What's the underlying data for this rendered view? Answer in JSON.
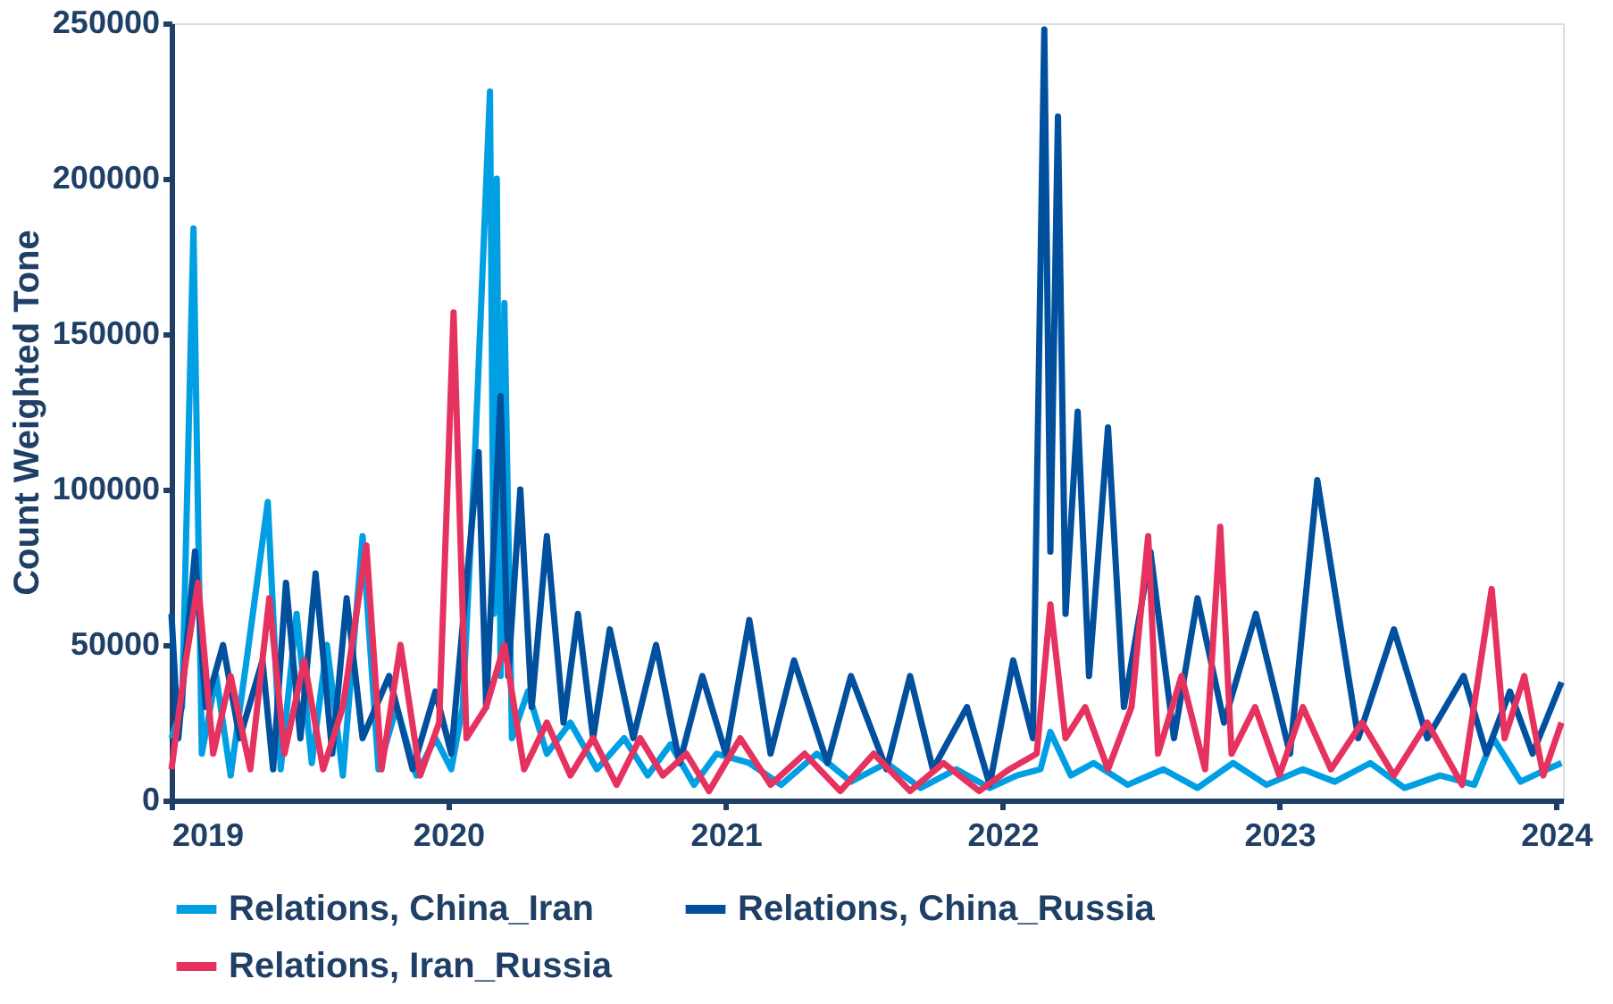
{
  "chart_data": {
    "type": "line",
    "ylabel": "Count Weighted Tone",
    "xlim": [
      "2019-01-01",
      "2024-01-10"
    ],
    "xticks": [
      "2019",
      "2020",
      "2021",
      "2022",
      "2023",
      "2024"
    ],
    "ylim": [
      0,
      250000
    ],
    "yticks": [
      0,
      50000,
      100000,
      150000,
      200000,
      250000
    ],
    "grid": false,
    "legend": "bottom",
    "line_style": "solid",
    "series": [
      {
        "name": "Relations, China_Iran",
        "color": "#009fe3",
        "x": [
          "2019-01-01",
          "2019-01-15",
          "2019-01-30",
          "2019-02-10",
          "2019-03-01",
          "2019-03-20",
          "2019-04-10",
          "2019-05-08",
          "2019-05-25",
          "2019-06-15",
          "2019-07-05",
          "2019-07-25",
          "2019-08-15",
          "2019-09-10",
          "2019-10-01",
          "2019-10-25",
          "2019-11-20",
          "2019-12-15",
          "2020-01-05",
          "2020-01-20",
          "2020-02-05",
          "2020-02-25",
          "2020-03-01",
          "2020-03-05",
          "2020-03-10",
          "2020-03-15",
          "2020-03-25",
          "2020-04-15",
          "2020-05-10",
          "2020-06-10",
          "2020-07-15",
          "2020-08-20",
          "2020-09-20",
          "2020-10-20",
          "2020-11-20",
          "2020-12-20",
          "2021-02-01",
          "2021-03-15",
          "2021-05-01",
          "2021-06-15",
          "2021-08-01",
          "2021-09-15",
          "2021-11-01",
          "2021-12-15",
          "2022-01-20",
          "2022-02-20",
          "2022-03-05",
          "2022-04-01",
          "2022-05-01",
          "2022-06-15",
          "2022-08-01",
          "2022-09-15",
          "2022-11-01",
          "2022-12-15",
          "2023-02-01",
          "2023-03-15",
          "2023-05-01",
          "2023-06-15",
          "2023-08-01",
          "2023-09-15",
          "2023-10-10",
          "2023-11-15",
          "2023-12-20",
          "2024-01-08"
        ],
        "values": [
          20000,
          30000,
          184000,
          15000,
          40000,
          8000,
          45000,
          96000,
          10000,
          60000,
          12000,
          50000,
          8000,
          85000,
          10000,
          30000,
          8000,
          20000,
          10000,
          30000,
          110000,
          228000,
          60000,
          200000,
          40000,
          160000,
          20000,
          35000,
          15000,
          25000,
          10000,
          20000,
          8000,
          18000,
          5000,
          15000,
          12000,
          5000,
          15000,
          6000,
          12000,
          4000,
          10000,
          4000,
          8000,
          10000,
          22000,
          8000,
          12000,
          5000,
          10000,
          4000,
          12000,
          5000,
          10000,
          6000,
          12000,
          4000,
          8000,
          5000,
          20000,
          6000,
          10000,
          12000
        ]
      },
      {
        "name": "Relations, China_Russia",
        "color": "#00509e",
        "x": [
          "2019-01-01",
          "2019-01-10",
          "2019-02-01",
          "2019-02-15",
          "2019-03-10",
          "2019-04-01",
          "2019-05-01",
          "2019-05-15",
          "2019-06-01",
          "2019-06-20",
          "2019-07-10",
          "2019-08-01",
          "2019-08-20",
          "2019-09-10",
          "2019-10-15",
          "2019-11-15",
          "2019-12-15",
          "2020-01-05",
          "2020-01-25",
          "2020-02-10",
          "2020-02-20",
          "2020-03-10",
          "2020-03-20",
          "2020-04-05",
          "2020-04-20",
          "2020-05-10",
          "2020-06-01",
          "2020-06-20",
          "2020-07-10",
          "2020-08-01",
          "2020-09-01",
          "2020-10-01",
          "2020-11-01",
          "2020-12-01",
          "2021-01-01",
          "2021-02-01",
          "2021-03-01",
          "2021-04-01",
          "2021-05-15",
          "2021-06-15",
          "2021-08-01",
          "2021-09-01",
          "2021-10-01",
          "2021-11-15",
          "2021-12-15",
          "2022-01-15",
          "2022-02-10",
          "2022-02-25",
          "2022-03-05",
          "2022-03-15",
          "2022-03-25",
          "2022-04-10",
          "2022-04-25",
          "2022-05-20",
          "2022-06-10",
          "2022-07-15",
          "2022-08-15",
          "2022-09-15",
          "2022-10-20",
          "2022-12-01",
          "2023-01-15",
          "2023-02-20",
          "2023-04-15",
          "2023-06-01",
          "2023-07-15",
          "2023-09-01",
          "2023-10-01",
          "2023-11-01",
          "2023-12-01",
          "2024-01-08"
        ],
        "values": [
          60000,
          20000,
          80000,
          30000,
          50000,
          20000,
          45000,
          10000,
          70000,
          20000,
          73000,
          15000,
          65000,
          20000,
          40000,
          10000,
          35000,
          15000,
          70000,
          112000,
          30000,
          130000,
          40000,
          100000,
          30000,
          85000,
          25000,
          60000,
          20000,
          55000,
          20000,
          50000,
          12000,
          40000,
          15000,
          58000,
          15000,
          45000,
          12000,
          40000,
          10000,
          40000,
          10000,
          30000,
          5000,
          45000,
          20000,
          248000,
          80000,
          220000,
          60000,
          125000,
          40000,
          120000,
          30000,
          80000,
          20000,
          65000,
          25000,
          60000,
          15000,
          103000,
          20000,
          55000,
          20000,
          40000,
          15000,
          35000,
          15000,
          38000
        ]
      },
      {
        "name": "Relations, Iran_Russia",
        "color": "#e6325f",
        "x": [
          "2019-01-01",
          "2019-01-20",
          "2019-02-05",
          "2019-02-25",
          "2019-03-20",
          "2019-04-15",
          "2019-05-10",
          "2019-05-30",
          "2019-06-25",
          "2019-07-20",
          "2019-08-15",
          "2019-09-15",
          "2019-10-05",
          "2019-10-30",
          "2019-11-25",
          "2019-12-20",
          "2020-01-08",
          "2020-01-25",
          "2020-02-20",
          "2020-03-15",
          "2020-04-10",
          "2020-05-10",
          "2020-06-10",
          "2020-07-10",
          "2020-08-10",
          "2020-09-10",
          "2020-10-10",
          "2020-11-10",
          "2020-12-10",
          "2021-01-20",
          "2021-03-01",
          "2021-04-15",
          "2021-06-01",
          "2021-07-15",
          "2021-09-01",
          "2021-10-15",
          "2021-12-01",
          "2022-01-10",
          "2022-02-15",
          "2022-03-05",
          "2022-03-25",
          "2022-04-20",
          "2022-05-20",
          "2022-06-20",
          "2022-07-12",
          "2022-07-25",
          "2022-08-25",
          "2022-09-25",
          "2022-10-15",
          "2022-10-30",
          "2022-11-30",
          "2023-01-01",
          "2023-02-01",
          "2023-03-10",
          "2023-04-20",
          "2023-06-01",
          "2023-07-15",
          "2023-08-30",
          "2023-10-08",
          "2023-10-25",
          "2023-11-20",
          "2023-12-15",
          "2024-01-08"
        ],
        "values": [
          10000,
          45000,
          70000,
          15000,
          40000,
          10000,
          65000,
          15000,
          45000,
          10000,
          30000,
          82000,
          10000,
          50000,
          8000,
          25000,
          157000,
          20000,
          30000,
          50000,
          10000,
          25000,
          8000,
          20000,
          5000,
          20000,
          8000,
          15000,
          3000,
          20000,
          5000,
          15000,
          3000,
          15000,
          3000,
          12000,
          3000,
          10000,
          15000,
          63000,
          20000,
          30000,
          10000,
          30000,
          85000,
          15000,
          40000,
          10000,
          88000,
          15000,
          30000,
          8000,
          30000,
          10000,
          25000,
          8000,
          25000,
          5000,
          68000,
          20000,
          40000,
          8000,
          25000
        ]
      }
    ]
  }
}
